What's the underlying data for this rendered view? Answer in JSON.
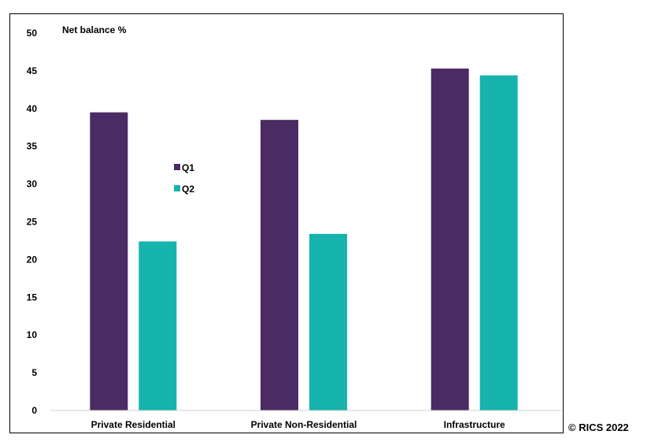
{
  "chart_data": {
    "type": "bar",
    "ylabel": "Net balance %",
    "categories": [
      "Private Residential",
      "Private Non-Residential",
      "Infrastructure"
    ],
    "series": [
      {
        "name": "Q1",
        "values": [
          39.5,
          38.5,
          45.3
        ],
        "color": "#4a2b63"
      },
      {
        "name": "Q2",
        "values": [
          22.4,
          23.4,
          44.4
        ],
        "color": "#17b3ad"
      }
    ],
    "ylim": [
      0,
      50
    ],
    "yticks": [
      0,
      5,
      10,
      15,
      20,
      25,
      30,
      35,
      40,
      45,
      50
    ],
    "grid": false,
    "legend": "middle-left"
  },
  "footer": {
    "copyright": "© RICS 2022"
  }
}
